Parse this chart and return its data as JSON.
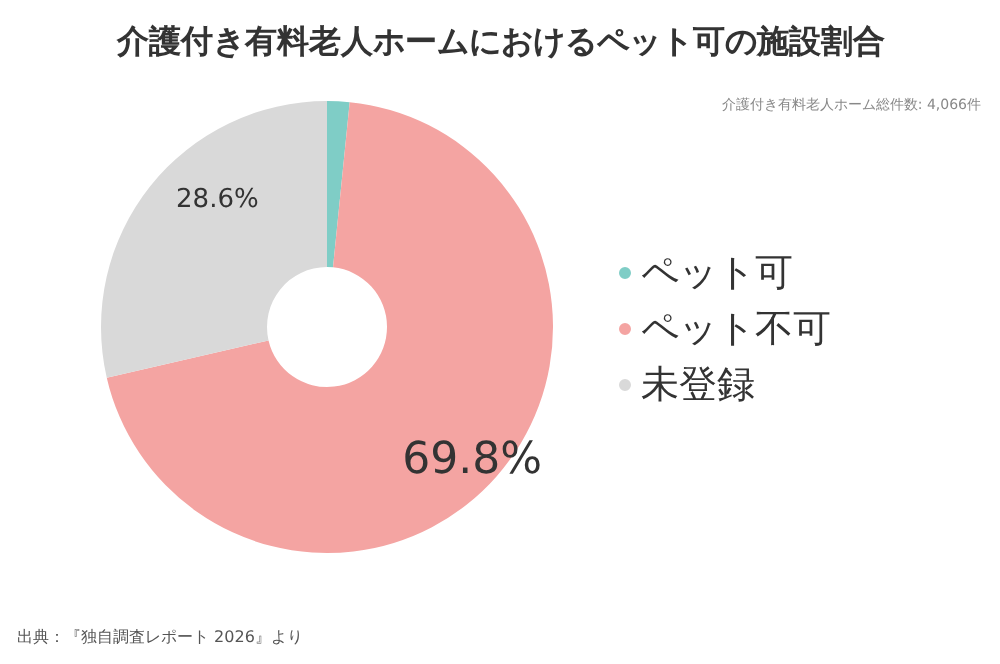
{
  "chart_data": {
    "type": "donut",
    "title": "介護付き有料老人ホームにおけるペット可の施設割合",
    "subtitle": "介護付き有料老人ホーム総件数: 4,066件",
    "categories": [
      "ペット可",
      "ペット不可",
      "未登録"
    ],
    "values": [
      1.6,
      69.8,
      28.6
    ],
    "colors": [
      "#7fcdc6",
      "#f4a4a2",
      "#d9d9d9"
    ],
    "value_labels": [
      null,
      "69.8%",
      "28.6%"
    ],
    "legend": "right",
    "annotations": [
      "出典：『独自調査レポート 2026』より"
    ]
  }
}
